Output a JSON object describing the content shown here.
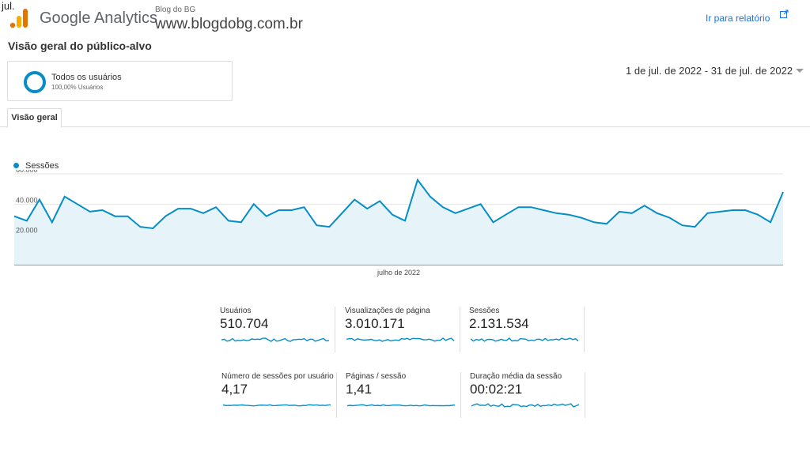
{
  "corner_label": "jul.",
  "header": {
    "product": "Google Analytics",
    "site_subtitle": "Blog do BG",
    "site_url": "www.blogdobg.com.br",
    "report_link": "Ir para relatório"
  },
  "page_title": "Visão geral do público-alvo",
  "segment": {
    "name": "Todos os usuários",
    "share": "100,00% Usuários"
  },
  "date_range": "1 de jul. de 2022 - 31 de jul. de 2022",
  "tabs": [
    {
      "label": "Visão geral"
    }
  ],
  "colors": {
    "accent": "#058dc7",
    "area_fill": "#e6f3f9",
    "link": "#1a73e8"
  },
  "chart_data": {
    "type": "area",
    "legend": "Sessões",
    "ytick_labels": [
      "60.000",
      "40.000",
      "20.000"
    ],
    "ylim": [
      0,
      60000
    ],
    "xlabel_text": "julho de 2022",
    "grid": true,
    "values": [
      32000,
      29000,
      43000,
      28000,
      45000,
      40000,
      35000,
      36000,
      32000,
      32000,
      25000,
      24000,
      32000,
      37000,
      37000,
      34000,
      38000,
      29000,
      28000,
      40000,
      32000,
      36000,
      36000,
      38000,
      26000,
      25000,
      34000,
      43000,
      37000,
      42000,
      33000,
      29000,
      56000,
      45000,
      38000,
      34000,
      37000,
      40000,
      28000,
      33000,
      38000,
      38000,
      36000,
      34000,
      33000,
      31000,
      28000,
      27000,
      35000,
      34000,
      39000,
      34000,
      31000,
      26000,
      25000,
      34000,
      35000,
      36000,
      36000,
      33000,
      28000,
      48000
    ]
  },
  "metrics": [
    {
      "label": "Usuários",
      "value": "510.704"
    },
    {
      "label": "Visualizações de página",
      "value": "3.010.171"
    },
    {
      "label": "Sessões",
      "value": "2.131.534"
    },
    {
      "label": "Número de sessões por usuário",
      "value": "4,17"
    },
    {
      "label": "Páginas / sessão",
      "value": "1,41"
    },
    {
      "label": "Duração média da sessão",
      "value": "00:02:21"
    }
  ]
}
